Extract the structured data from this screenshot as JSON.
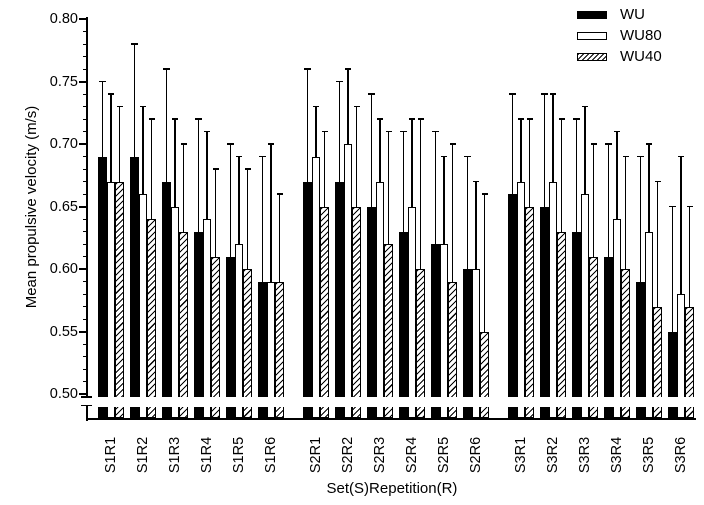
{
  "figure": {
    "background": "#ffffff",
    "foreground": "#000000"
  },
  "chart_data": {
    "type": "bar",
    "title": "",
    "xlabel": "Set(S)Repetition(R)",
    "ylabel": "Mean propulsive velocity (m/s)",
    "ylim": [
      0.5,
      0.8
    ],
    "yticks_major": [
      0.5,
      0.55,
      0.6,
      0.65,
      0.7,
      0.75,
      0.8
    ],
    "ytick_minor_step": 0.01,
    "axis_break_below": 0.5,
    "grid": false,
    "legend_position": "top-right",
    "error_bars": "upper-only",
    "categories": [
      "S1R1",
      "S1R2",
      "S1R3",
      "S1R4",
      "S1R5",
      "S1R6",
      "S2R1",
      "S2R2",
      "S2R3",
      "S2R4",
      "S2R5",
      "S2R6",
      "S3R1",
      "S3R2",
      "S3R3",
      "S3R4",
      "S3R5",
      "S3R6"
    ],
    "set_gap_after": [
      "S1R6",
      "S2R6"
    ],
    "series": [
      {
        "name": "WU",
        "fill": "solid-black",
        "values": [
          0.69,
          0.69,
          0.67,
          0.63,
          0.61,
          0.59,
          0.67,
          0.67,
          0.65,
          0.63,
          0.62,
          0.6,
          0.66,
          0.65,
          0.63,
          0.61,
          0.59,
          0.55
        ],
        "err_top": [
          0.75,
          0.78,
          0.76,
          0.72,
          0.7,
          0.69,
          0.76,
          0.75,
          0.74,
          0.71,
          0.71,
          0.69,
          0.74,
          0.74,
          0.72,
          0.7,
          0.69,
          0.65
        ]
      },
      {
        "name": "WU80",
        "fill": "white-outline",
        "values": [
          0.67,
          0.66,
          0.65,
          0.64,
          0.62,
          0.59,
          0.69,
          0.7,
          0.67,
          0.65,
          0.62,
          0.6,
          0.67,
          0.67,
          0.66,
          0.64,
          0.63,
          0.58
        ],
        "err_top": [
          0.74,
          0.73,
          0.72,
          0.71,
          0.69,
          0.7,
          0.73,
          0.76,
          0.72,
          0.72,
          0.69,
          0.67,
          0.72,
          0.74,
          0.73,
          0.71,
          0.7,
          0.69
        ]
      },
      {
        "name": "WU40",
        "fill": "diagonal-hatch",
        "values": [
          0.67,
          0.64,
          0.63,
          0.61,
          0.6,
          0.59,
          0.65,
          0.65,
          0.62,
          0.6,
          0.59,
          0.55,
          0.65,
          0.63,
          0.61,
          0.6,
          0.57,
          0.57
        ],
        "err_top": [
          0.73,
          0.72,
          0.7,
          0.68,
          0.68,
          0.66,
          0.71,
          0.73,
          0.71,
          0.72,
          0.7,
          0.66,
          0.72,
          0.72,
          0.7,
          0.69,
          0.67,
          0.65
        ]
      }
    ]
  }
}
